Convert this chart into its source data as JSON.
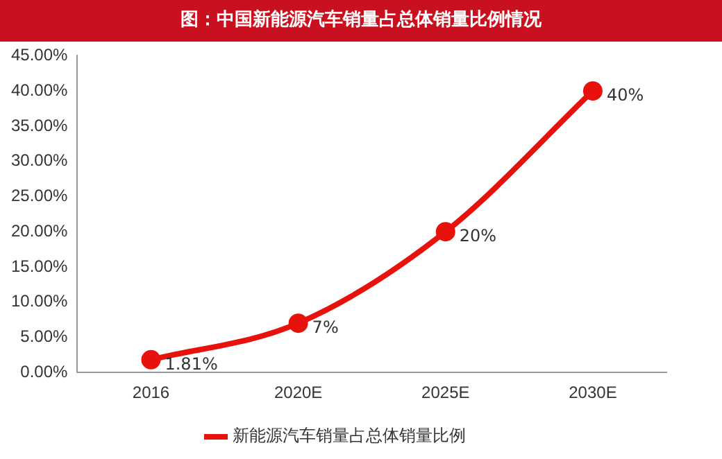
{
  "chart_data": {
    "type": "line",
    "title": "图：中国新能源汽车销量占总体销量比例情况",
    "categories": [
      "2016",
      "2020E",
      "2025E",
      "2030E"
    ],
    "series": [
      {
        "name": "新能源汽车销量占总体销量比例",
        "color": "#e8120c",
        "values": [
          1.81,
          7,
          20,
          40
        ],
        "value_labels": [
          "1.81%",
          "7%",
          "20%",
          "40%"
        ]
      }
    ],
    "ylim": [
      0,
      45
    ],
    "yticks": [
      {
        "value": 0,
        "label": "0.00%"
      },
      {
        "value": 5,
        "label": "5.00%"
      },
      {
        "value": 10,
        "label": "10.00%"
      },
      {
        "value": 15,
        "label": "15.00%"
      },
      {
        "value": 20,
        "label": "20.00%"
      },
      {
        "value": 25,
        "label": "25.00%"
      },
      {
        "value": 30,
        "label": "30.00%"
      },
      {
        "value": 35,
        "label": "35.00%"
      },
      {
        "value": 40,
        "label": "40.00%"
      },
      {
        "value": 45,
        "label": "45.00%"
      }
    ],
    "grid": false,
    "legend": "bottom",
    "marker": "circle",
    "line_style": "solid"
  }
}
